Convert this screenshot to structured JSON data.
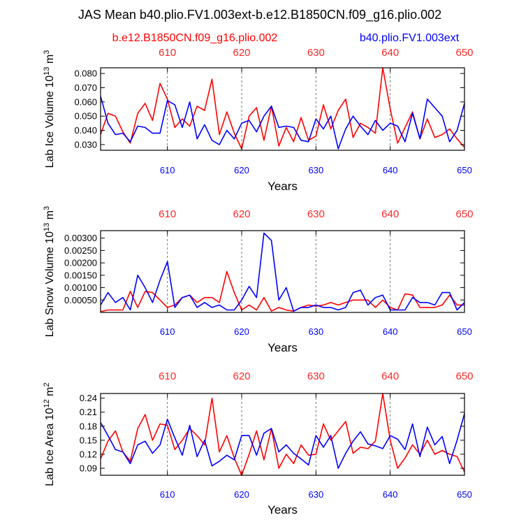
{
  "figure": {
    "title": "JAS Mean b40.plio.FV1.003ext-b.e12.B1850CN.f09_g16.plio.002",
    "legend_left": "b.e12.B1850CN.f09_g16.plio.002",
    "legend_right": "b40.plio.FV1.003ext",
    "colors": {
      "red": "#ff0000",
      "blue": "#0000ff",
      "axis": "#000000"
    }
  },
  "chart_data": [
    {
      "type": "line",
      "ylabel_main": "Lab Ice Volume 10",
      "ylabel_exp": "13",
      "ylabel_unit": "m",
      "ylabel_unit_exp": "3",
      "xlabel": "Years",
      "xlim": [
        601,
        650
      ],
      "ylim": [
        0.026,
        0.084
      ],
      "yticks": [
        0.03,
        0.04,
        0.05,
        0.06,
        0.07,
        0.08
      ],
      "ytick_labels": [
        "0.030",
        "0.040",
        "0.050",
        "0.060",
        "0.070",
        "0.080"
      ],
      "xticks": [
        610,
        620,
        630,
        640,
        650
      ],
      "xtick_labels": [
        "610",
        "620",
        "630",
        "640",
        "650"
      ],
      "x": [
        601,
        602,
        603,
        604,
        605,
        606,
        607,
        608,
        609,
        610,
        611,
        612,
        613,
        614,
        615,
        616,
        617,
        618,
        619,
        620,
        621,
        622,
        623,
        624,
        625,
        626,
        627,
        628,
        629,
        630,
        631,
        632,
        633,
        634,
        635,
        636,
        637,
        638,
        639,
        640,
        641,
        642,
        643,
        644,
        645,
        646,
        647,
        648,
        649,
        650
      ],
      "series": [
        {
          "name": "b.e12.B1850CN.f09_g16.plio.002",
          "color": "#ff0000",
          "values": [
            0.037,
            0.052,
            0.05,
            0.039,
            0.031,
            0.052,
            0.059,
            0.047,
            0.073,
            0.062,
            0.042,
            0.048,
            0.043,
            0.057,
            0.054,
            0.076,
            0.037,
            0.053,
            0.038,
            0.027,
            0.05,
            0.056,
            0.033,
            0.057,
            0.029,
            0.042,
            0.032,
            0.049,
            0.033,
            0.036,
            0.058,
            0.041,
            0.054,
            0.062,
            0.035,
            0.045,
            0.042,
            0.038,
            0.084,
            0.055,
            0.031,
            0.042,
            0.053,
            0.034,
            0.048,
            0.035,
            0.037,
            0.041,
            0.034,
            0.028
          ]
        },
        {
          "name": "b40.plio.FV1.003ext",
          "color": "#0000ff",
          "values": [
            0.064,
            0.045,
            0.037,
            0.038,
            0.032,
            0.043,
            0.042,
            0.038,
            0.038,
            0.061,
            0.058,
            0.042,
            0.06,
            0.034,
            0.044,
            0.033,
            0.03,
            0.04,
            0.034,
            0.045,
            0.047,
            0.039,
            0.05,
            0.057,
            0.042,
            0.043,
            0.042,
            0.033,
            0.032,
            0.048,
            0.041,
            0.05,
            0.027,
            0.041,
            0.05,
            0.043,
            0.037,
            0.047,
            0.04,
            0.045,
            0.043,
            0.032,
            0.052,
            0.034,
            0.062,
            0.056,
            0.05,
            0.032,
            0.04,
            0.059
          ]
        }
      ]
    },
    {
      "type": "line",
      "ylabel_main": "Lab Snow Volume 10",
      "ylabel_exp": "13",
      "ylabel_unit": "m",
      "ylabel_unit_exp": "3",
      "xlabel": "Years",
      "xlim": [
        601,
        650
      ],
      "ylim": [
        0.0,
        0.0033
      ],
      "yticks": [
        0.0005,
        0.001,
        0.0015,
        0.002,
        0.0025,
        0.003
      ],
      "ytick_labels": [
        "0.00050",
        "0.00100",
        "0.00150",
        "0.00200",
        "0.00250",
        "0.00300"
      ],
      "xticks": [
        610,
        620,
        630,
        640,
        650
      ],
      "xtick_labels": [
        "610",
        "620",
        "630",
        "640",
        "650"
      ],
      "x": [
        601,
        602,
        603,
        604,
        605,
        606,
        607,
        608,
        609,
        610,
        611,
        612,
        613,
        614,
        615,
        616,
        617,
        618,
        619,
        620,
        621,
        622,
        623,
        624,
        625,
        626,
        627,
        628,
        629,
        630,
        631,
        632,
        633,
        634,
        635,
        636,
        637,
        638,
        639,
        640,
        641,
        642,
        643,
        644,
        645,
        646,
        647,
        648,
        649,
        650
      ],
      "series": [
        {
          "name": "b.e12.B1850CN.f09_g16.plio.002",
          "color": "#ff0000",
          "values": [
            3e-05,
            0.0001,
            0.0001,
            0.0001,
            0.00085,
            0.0002,
            0.00085,
            0.0008,
            0.0005,
            0.0002,
            0.0003,
            0.0006,
            0.0007,
            0.0004,
            0.0006,
            0.0006,
            0.0004,
            0.00165,
            0.0008,
            0.0001,
            0.0003,
            0.0001,
            0.0006,
            5e-05,
            0.0002,
            0.0001,
            5e-05,
            0.0002,
            0.0003,
            0.00025,
            0.0003,
            0.0004,
            0.0003,
            0.0004,
            0.0005,
            0.0005,
            0.0005,
            0.0002,
            0.0005,
            0.0002,
            0.0001,
            0.00075,
            0.0007,
            0.0002,
            0.0002,
            0.0002,
            0.0003,
            0.0007,
            0.0003,
            0.0003
          ]
        },
        {
          "name": "b40.plio.FV1.003ext",
          "color": "#0000ff",
          "values": [
            0.0003,
            0.0008,
            0.0004,
            0.0006,
            0.0001,
            0.0015,
            0.001,
            0.0004,
            0.0013,
            0.00205,
            0.0002,
            0.0006,
            0.0007,
            0.0002,
            0.0004,
            0.0002,
            0.0003,
            0.0001,
            0.0001,
            0.0005,
            0.00105,
            0.0006,
            0.0032,
            0.0029,
            0.0005,
            0.001,
            5e-05,
            0.0002,
            0.0002,
            0.0003,
            0.0002,
            0.0002,
            0.0001,
            0.0002,
            0.0008,
            0.0009,
            0.0003,
            0.0006,
            0.0007,
            0.0001,
            0.0001,
            0.0001,
            0.0006,
            0.0004,
            0.0004,
            0.0003,
            0.0008,
            0.0008,
            0.0001,
            0.0004
          ]
        }
      ]
    },
    {
      "type": "line",
      "ylabel_main": "Lab Ice Area 10",
      "ylabel_exp": "12",
      "ylabel_unit": "m",
      "ylabel_unit_exp": "2",
      "xlabel": "Years",
      "xlim": [
        601,
        650
      ],
      "ylim": [
        0.075,
        0.25
      ],
      "yticks": [
        0.09,
        0.12,
        0.15,
        0.18,
        0.21,
        0.24
      ],
      "ytick_labels": [
        "0.09",
        "0.12",
        "0.15",
        "0.18",
        "0.21",
        "0.24"
      ],
      "xticks": [
        610,
        620,
        630,
        640,
        650
      ],
      "xtick_labels": [
        "610",
        "620",
        "630",
        "640",
        "650"
      ],
      "x": [
        601,
        602,
        603,
        604,
        605,
        606,
        607,
        608,
        609,
        610,
        611,
        612,
        613,
        614,
        615,
        616,
        617,
        618,
        619,
        620,
        621,
        622,
        623,
        624,
        625,
        626,
        627,
        628,
        629,
        630,
        631,
        632,
        633,
        634,
        635,
        636,
        637,
        638,
        639,
        640,
        641,
        642,
        643,
        644,
        645,
        646,
        647,
        648,
        649,
        650
      ],
      "series": [
        {
          "name": "b.e12.B1850CN.f09_g16.plio.002",
          "color": "#ff0000",
          "values": [
            0.11,
            0.148,
            0.17,
            0.125,
            0.105,
            0.175,
            0.205,
            0.15,
            0.185,
            0.182,
            0.13,
            0.15,
            0.175,
            0.16,
            0.14,
            0.24,
            0.125,
            0.16,
            0.112,
            0.075,
            0.12,
            0.17,
            0.108,
            0.175,
            0.09,
            0.12,
            0.1,
            0.14,
            0.118,
            0.12,
            0.185,
            0.15,
            0.17,
            0.19,
            0.122,
            0.135,
            0.132,
            0.148,
            0.25,
            0.15,
            0.09,
            0.112,
            0.14,
            0.12,
            0.15,
            0.12,
            0.128,
            0.12,
            0.115,
            0.082
          ]
        },
        {
          "name": "b40.plio.FV1.003ext",
          "color": "#0000ff",
          "values": [
            0.188,
            0.16,
            0.13,
            0.125,
            0.1,
            0.14,
            0.148,
            0.122,
            0.14,
            0.195,
            0.155,
            0.118,
            0.182,
            0.115,
            0.15,
            0.095,
            0.105,
            0.118,
            0.108,
            0.16,
            0.16,
            0.118,
            0.165,
            0.175,
            0.125,
            0.14,
            0.122,
            0.11,
            0.097,
            0.16,
            0.135,
            0.16,
            0.09,
            0.122,
            0.148,
            0.168,
            0.142,
            0.138,
            0.132,
            0.16,
            0.152,
            0.13,
            0.185,
            0.115,
            0.178,
            0.14,
            0.158,
            0.1,
            0.15,
            0.207
          ]
        }
      ]
    }
  ]
}
